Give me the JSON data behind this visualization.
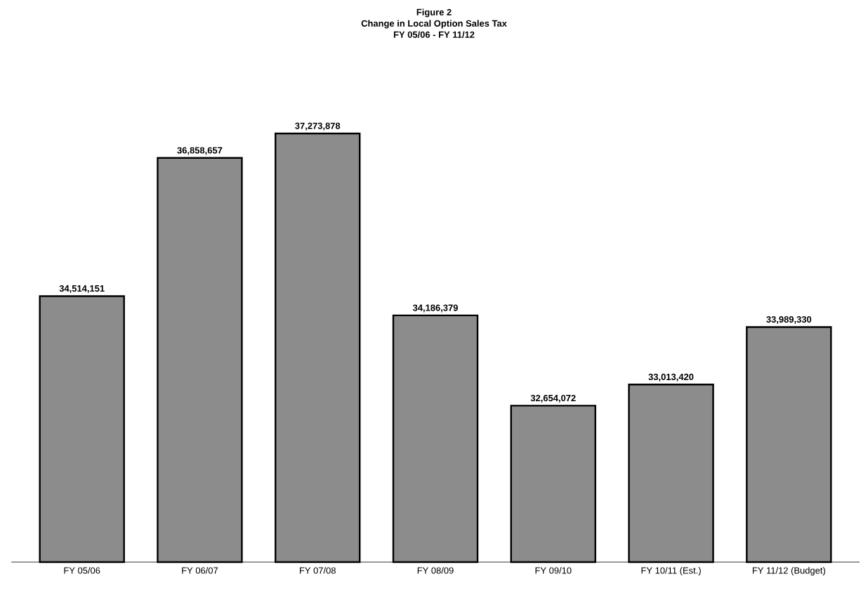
{
  "chart_data": {
    "type": "bar",
    "title": "Figure 2",
    "subtitle": "Change in Local Option Sales Tax",
    "annotations": [
      "FY 05/06 - FY 11/12"
    ],
    "categories": [
      "FY 05/06",
      "FY 06/07",
      "FY 07/08",
      "FY 08/09",
      "FY 09/10",
      "FY 10/11 (Est.)",
      "FY 11/12 (Budget)"
    ],
    "values": [
      34514151,
      36858657,
      37273878,
      34186379,
      32654072,
      33013420,
      33989330
    ],
    "value_labels": [
      "34,514,151",
      "36,858,657",
      "37,273,878",
      "34,186,379",
      "32,654,072",
      "33,013,420",
      "33,989,330"
    ],
    "color": "#8c8c8c",
    "ylim": [
      30000000,
      37273878
    ]
  }
}
